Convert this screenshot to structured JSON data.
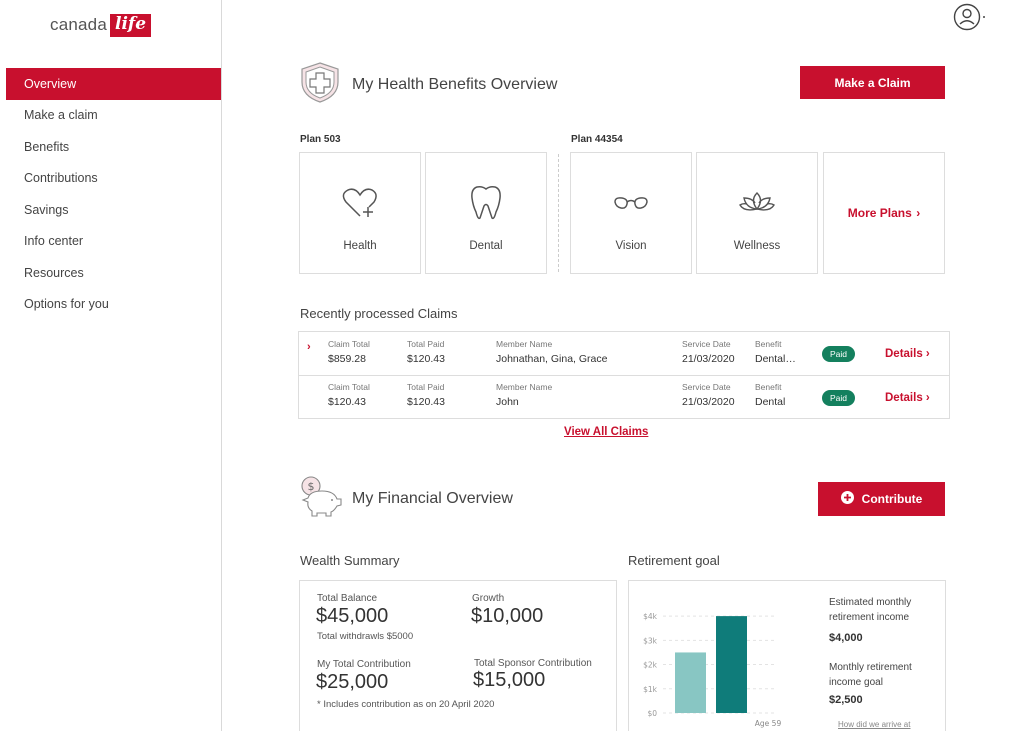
{
  "brand": {
    "text": "canada",
    "box_text": "life",
    "color": "#c8102e"
  },
  "sidebar": {
    "items": [
      {
        "label": "Overview",
        "active": true
      },
      {
        "label": "Make a claim"
      },
      {
        "label": "Benefits"
      },
      {
        "label": "Contributions"
      },
      {
        "label": "Savings"
      },
      {
        "label": "Info center"
      },
      {
        "label": "Resources"
      },
      {
        "label": "Options for you"
      }
    ]
  },
  "health": {
    "title": "My Health Benefits Overview",
    "cta": "Make a Claim",
    "plans": [
      {
        "label": "Plan 503",
        "cards": [
          {
            "label": "Health",
            "icon": "heart-plus-icon"
          },
          {
            "label": "Dental",
            "icon": "tooth-icon"
          }
        ]
      },
      {
        "label": "Plan 44354",
        "cards": [
          {
            "label": "Vision",
            "icon": "glasses-icon"
          },
          {
            "label": "Wellness",
            "icon": "lotus-icon"
          }
        ]
      }
    ],
    "more_plans": "More Plans"
  },
  "claims": {
    "title": "Recently processed Claims",
    "columns": {
      "claim_total": "Claim Total",
      "total_paid": "Total Paid",
      "member": "Member Name",
      "service_date": "Service Date",
      "benefit": "Benefit"
    },
    "rows": [
      {
        "claim_total": "$859.28",
        "total_paid": "$120.43",
        "member": "Johnathan, Gina, Grace",
        "service_date": "21/03/2020",
        "benefit": "Dental…",
        "status": "Paid",
        "action": "Details"
      },
      {
        "claim_total": "$120.43",
        "total_paid": "$120.43",
        "member": "John",
        "service_date": "21/03/2020",
        "benefit": "Dental",
        "status": "Paid",
        "action": "Details"
      }
    ],
    "view_all": "View All Claims"
  },
  "financial": {
    "title": "My Financial Overview",
    "cta": "Contribute",
    "wealth": {
      "title": "Wealth Summary",
      "total_balance_label": "Total Balance",
      "total_balance": "$45,000",
      "withdrawals": "Total withdrawls $5000",
      "growth_label": "Growth",
      "growth": "$10,000",
      "my_contribution_label": "My Total Contribution",
      "my_contribution": "$25,000",
      "sponsor_label": "Total Sponsor Contribution",
      "sponsor": "$15,000",
      "footnote": "* Includes contribution as on 20 April 2020"
    },
    "retirement": {
      "title": "Retirement goal",
      "estimated_label": "Estimated monthly retirement income",
      "estimated": "$4,000",
      "goal_label": "Monthly retirement income goal",
      "goal": "$2,500",
      "link": "How did we arrive at"
    }
  },
  "chart_data": {
    "type": "bar",
    "categories": [
      "Monthly retirement income goal",
      "Estimated monthly retirement income"
    ],
    "values": [
      2500,
      4000
    ],
    "colors": [
      "#88c6c3",
      "#0f7c7a"
    ],
    "yticks": [
      "$0",
      "$1k",
      "$2k",
      "$3k",
      "$4k"
    ],
    "ylim": [
      0,
      4500
    ],
    "xlabel": "Age 59"
  },
  "colors": {
    "accent": "#c8102e",
    "paid": "#14805e",
    "teal": "#0f7c7a",
    "teal_light": "#88c6c3"
  }
}
